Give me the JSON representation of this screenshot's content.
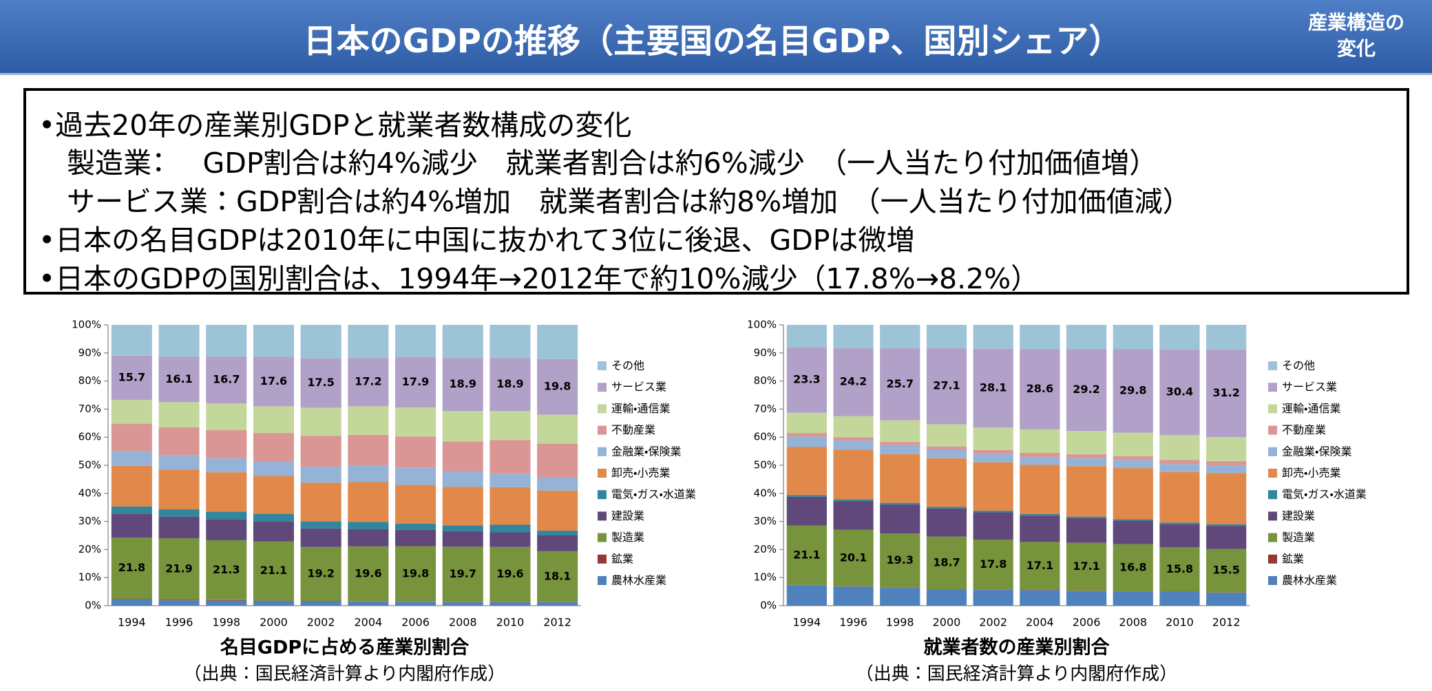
{
  "header": {
    "title": "日本のGDPの推移（主要国の名目GDP、国別シェア）",
    "section": [
      "産業構造の",
      "変化"
    ]
  },
  "summary": {
    "lines": [
      "•過去20年の産業別GDPと就業者数構成の変化",
      "　製造業：　 GDP割合は約4%減少　就業者割合は約6%減少　（一人当たり付加価値増）",
      "　サービス業：GDP割合は約4%増加　就業者割合は約8%増加　（一人当たり付加価値減）",
      "•日本の名目GDPは2010年に中国に抜かれて3位に後退、GDPは微増",
      "•日本のGDPの国別割合は、1994年→2012年で約10%減少（17.8%→8.2%）"
    ]
  },
  "chart_data": [
    {
      "type": "stacked_bar",
      "title": "名目GDPに占める産業別割合",
      "source": "（出典：国民経済計算より内閣府作成）",
      "categories": [
        "1994",
        "1996",
        "1998",
        "2000",
        "2002",
        "2004",
        "2006",
        "2008",
        "2010",
        "2012"
      ],
      "ylim": [
        0,
        100
      ],
      "yticks": [
        {
          "value": 0,
          "label": "0%"
        },
        {
          "value": 10,
          "label": "10%"
        },
        {
          "value": 20,
          "label": "20%"
        },
        {
          "value": 30,
          "label": "30%"
        },
        {
          "value": 40,
          "label": "40%"
        },
        {
          "value": 50,
          "label": "50%"
        },
        {
          "value": 60,
          "label": "60%"
        },
        {
          "value": 70,
          "label": "70%"
        },
        {
          "value": 80,
          "label": "80%"
        },
        {
          "value": 90,
          "label": "90%"
        },
        {
          "value": 100,
          "label": "100%"
        }
      ],
      "legend": "right",
      "series": [
        {
          "name": "農林水産業",
          "color": "#4f81bd",
          "values": [
            2.2,
            1.9,
            1.8,
            1.7,
            1.6,
            1.4,
            1.3,
            1.2,
            1.2,
            1.2
          ]
        },
        {
          "name": "鉱業",
          "color": "#953735",
          "values": [
            0.2,
            0.2,
            0.2,
            0.1,
            0.1,
            0.1,
            0.1,
            0.1,
            0.1,
            0.1
          ]
        },
        {
          "name": "製造業",
          "color": "#77933c",
          "data_labels": true,
          "values": [
            21.8,
            21.9,
            21.3,
            21.1,
            19.2,
            19.6,
            19.8,
            19.7,
            19.6,
            18.1
          ]
        },
        {
          "name": "建設業",
          "color": "#60497a",
          "values": [
            8.6,
            7.7,
            7.5,
            7.1,
            6.6,
            6.2,
            5.8,
            5.5,
            5.2,
            5.6
          ]
        },
        {
          "name": "電気・ガス・水道業",
          "color": "#31859c",
          "values": [
            2.5,
            2.6,
            2.7,
            2.7,
            2.5,
            2.5,
            2.2,
            2.1,
            2.7,
            1.7
          ]
        },
        {
          "name": "卸売・小売業",
          "color": "#e0894a",
          "values": [
            14.5,
            14.2,
            14.0,
            13.5,
            13.8,
            14.2,
            13.8,
            13.7,
            13.4,
            14.3
          ]
        },
        {
          "name": "金融業・保険業",
          "color": "#95b3d7",
          "values": [
            5.2,
            5.0,
            5.0,
            5.0,
            5.7,
            5.8,
            6.2,
            5.5,
            4.8,
            4.6
          ]
        },
        {
          "name": "不動産業",
          "color": "#d99694",
          "values": [
            9.8,
            10.0,
            10.0,
            10.3,
            11.0,
            11.0,
            11.0,
            10.7,
            12.0,
            12.1
          ]
        },
        {
          "name": "運輸・通信業",
          "color": "#c4d79b",
          "values": [
            8.5,
            9.0,
            9.5,
            9.5,
            10.0,
            10.2,
            10.4,
            10.8,
            10.3,
            10.3
          ]
        },
        {
          "name": "サービス業",
          "color": "#b1a0c7",
          "data_labels": true,
          "values": [
            15.7,
            16.1,
            16.7,
            17.6,
            17.5,
            17.2,
            17.9,
            18.9,
            18.9,
            19.8
          ]
        },
        {
          "name": "その他",
          "color": "#9dc3d6",
          "values": [
            11.0,
            11.4,
            11.3,
            11.4,
            12.0,
            11.8,
            11.5,
            11.8,
            11.8,
            12.2
          ]
        }
      ]
    },
    {
      "type": "stacked_bar",
      "title": "就業者数の産業別割合",
      "source": "（出典：国民経済計算より内閣府作成）",
      "categories": [
        "1994",
        "1996",
        "1998",
        "2000",
        "2002",
        "2004",
        "2006",
        "2008",
        "2010",
        "2012"
      ],
      "ylim": [
        0,
        100
      ],
      "yticks": [
        {
          "value": 0,
          "label": "0%"
        },
        {
          "value": 10,
          "label": "10%"
        },
        {
          "value": 20,
          "label": "20%"
        },
        {
          "value": 30,
          "label": "30%"
        },
        {
          "value": 40,
          "label": "40%"
        },
        {
          "value": 50,
          "label": "50%"
        },
        {
          "value": 60,
          "label": "60%"
        },
        {
          "value": 70,
          "label": "70%"
        },
        {
          "value": 80,
          "label": "80%"
        },
        {
          "value": 90,
          "label": "90%"
        },
        {
          "value": 100,
          "label": "100%"
        }
      ],
      "legend": "right",
      "series": [
        {
          "name": "農林水産業",
          "color": "#4f81bd",
          "values": [
            7.3,
            6.8,
            6.3,
            5.8,
            5.6,
            5.5,
            5.2,
            5.0,
            4.9,
            4.6
          ]
        },
        {
          "name": "鉱業",
          "color": "#953735",
          "values": [
            0.1,
            0.1,
            0.1,
            0.1,
            0.1,
            0.1,
            0.1,
            0.1,
            0.1,
            0.1
          ]
        },
        {
          "name": "製造業",
          "color": "#77933c",
          "data_labels": true,
          "values": [
            21.1,
            20.1,
            19.3,
            18.7,
            17.8,
            17.1,
            17.1,
            16.8,
            15.8,
            15.5
          ]
        },
        {
          "name": "建設業",
          "color": "#60497a",
          "values": [
            10.3,
            10.3,
            10.3,
            10.0,
            9.7,
            9.3,
            8.8,
            8.4,
            8.2,
            8.2
          ]
        },
        {
          "name": "電気・ガス・水道業",
          "color": "#31859c",
          "values": [
            0.6,
            0.6,
            0.6,
            0.6,
            0.6,
            0.6,
            0.5,
            0.5,
            0.6,
            0.6
          ]
        },
        {
          "name": "卸売・小売業",
          "color": "#e0894a",
          "values": [
            17.1,
            17.6,
            17.4,
            17.3,
            17.2,
            17.6,
            18.0,
            18.2,
            18.0,
            18.2
          ]
        },
        {
          "name": "金融業・保険業",
          "color": "#95b3d7",
          "values": [
            3.7,
            3.3,
            3.2,
            3.0,
            3.0,
            2.8,
            2.8,
            2.8,
            2.8,
            2.7
          ]
        },
        {
          "name": "不動産業",
          "color": "#d99694",
          "values": [
            1.3,
            1.2,
            1.1,
            1.2,
            1.4,
            1.4,
            1.4,
            1.4,
            1.5,
            1.6
          ]
        },
        {
          "name": "運輸・通信業",
          "color": "#c4d79b",
          "values": [
            7.2,
            7.5,
            7.7,
            7.9,
            8.0,
            8.4,
            8.3,
            8.4,
            8.9,
            8.5
          ]
        },
        {
          "name": "サービス業",
          "color": "#b1a0c7",
          "data_labels": true,
          "values": [
            23.3,
            24.2,
            25.7,
            27.1,
            28.1,
            28.6,
            29.2,
            29.8,
            30.4,
            31.2
          ]
        },
        {
          "name": "その他",
          "color": "#9dc3d6",
          "values": [
            8.0,
            8.3,
            8.3,
            8.3,
            8.5,
            8.6,
            8.6,
            8.6,
            8.8,
            8.8
          ]
        }
      ]
    }
  ]
}
